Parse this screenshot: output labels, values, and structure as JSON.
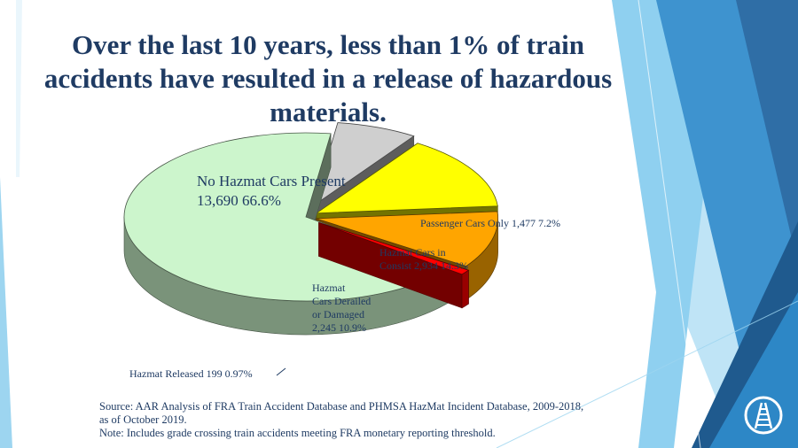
{
  "title_lines": [
    "Over the last 10 years, less than 1% of train",
    "accidents have resulted in a release of hazardous",
    "materials."
  ],
  "source_lines": [
    "Source: AAR Analysis of FRA Train Accident Database and PHMSA HazMat Incident Database, 2009-2018,",
    "as of October 2019.",
    "Note: Includes grade crossing train accidents meeting FRA monetary reporting threshold."
  ],
  "chart_data": {
    "type": "pie",
    "title": "",
    "slices": [
      {
        "label_lines": [
          "No Hazmat Cars Present",
          "13,690   66.6%"
        ],
        "count": 13690,
        "percent": 66.6,
        "color": "#ccf5cc"
      },
      {
        "label_lines": [
          "Passenger Cars Only  1,477  7.2%"
        ],
        "count": 1477,
        "percent": 7.2,
        "color": "#cfcfcf"
      },
      {
        "label_lines": [
          "Hazmat Cars in",
          "Consist  2,934  14.3%"
        ],
        "count": 2934,
        "percent": 14.3,
        "color": "#ffff00"
      },
      {
        "label_lines": [
          "Hazmat",
          "Cars Derailed",
          "or Damaged",
          "2,245 10.9%"
        ],
        "count": 2245,
        "percent": 10.9,
        "color": "#ffa500"
      },
      {
        "label_lines": [
          "Hazmat Released  199   0.97%"
        ],
        "count": 199,
        "percent": 0.97,
        "color": "#ff0000"
      }
    ],
    "legend": "none"
  },
  "colors": {
    "title": "#1f3b63",
    "accent_dark": "#1f5a8e",
    "accent_mid": "#2d87c6",
    "accent_light": "#7fc6ec"
  },
  "logo_icon": "railroad-track-icon"
}
